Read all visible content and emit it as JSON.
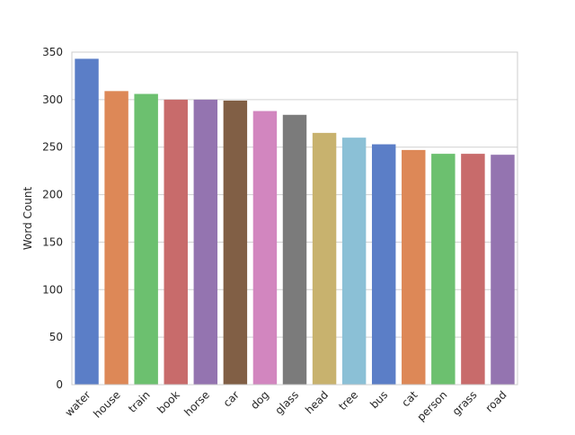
{
  "chart_data": {
    "type": "bar",
    "title": "",
    "xlabel": "",
    "ylabel": "Word Count",
    "ylim": [
      0,
      350
    ],
    "yticks": [
      0,
      50,
      100,
      150,
      200,
      250,
      300,
      350
    ],
    "grid": "horizontal",
    "legend": "none",
    "categories": [
      "water",
      "house",
      "train",
      "book",
      "horse",
      "car",
      "dog",
      "glass",
      "head",
      "tree",
      "bus",
      "cat",
      "person",
      "grass",
      "road"
    ],
    "values": [
      343,
      309,
      306,
      300,
      300,
      299,
      288,
      284,
      265,
      260,
      253,
      247,
      243,
      243,
      242
    ],
    "colors": [
      "#5b7ec7",
      "#dd8857",
      "#6cc06f",
      "#c86b6b",
      "#9474b0",
      "#815f45",
      "#d286bf",
      "#7b7b7b",
      "#c8b26e",
      "#8bc0d6",
      "#5b7ec7",
      "#dd8857",
      "#6cc06f",
      "#c86b6b",
      "#9474b0"
    ],
    "styling": {
      "grid_color": "#d0d0d0",
      "frame_color": "#cccccc",
      "text_color": "#262626"
    }
  }
}
